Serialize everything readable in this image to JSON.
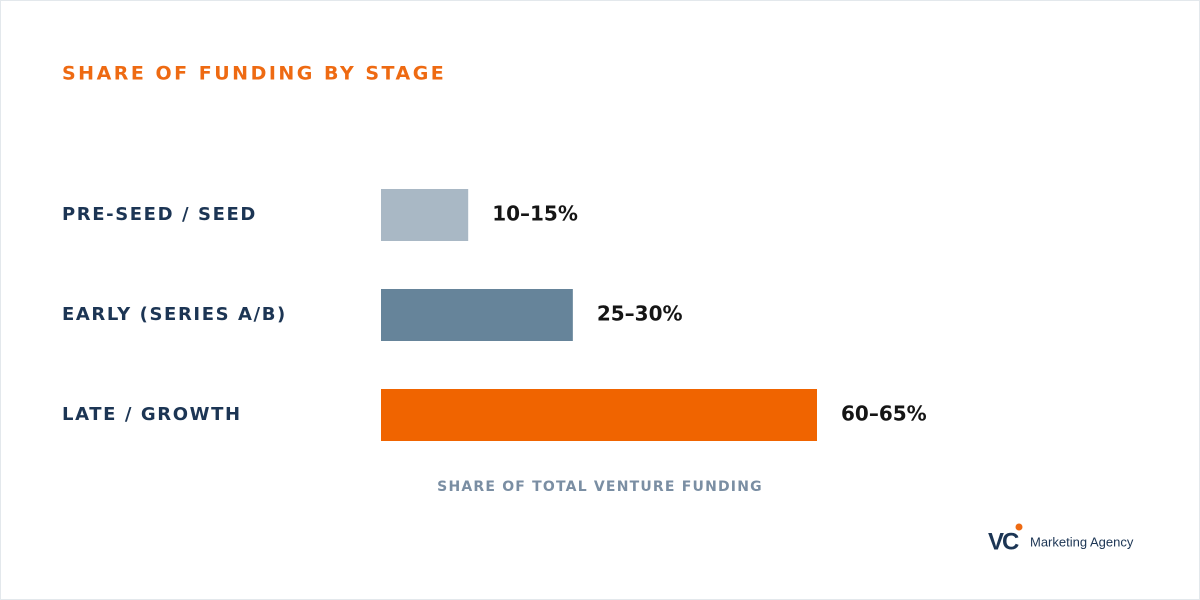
{
  "chart_data": {
    "type": "bar",
    "orientation": "horizontal",
    "title": "SHARE OF FUNDING BY STAGE",
    "categories": [
      "PRE-SEED / SEED",
      "EARLY (SERIES A/B)",
      "LATE / GROWTH"
    ],
    "values": [
      12.5,
      27.5,
      62.5
    ],
    "value_labels": [
      "10–15%",
      "25–30%",
      "60–65%"
    ],
    "colors": [
      "#a9b8c5",
      "#66849a",
      "#f06400"
    ],
    "xlabel": "SHARE OF TOTAL VENTURE FUNDING"
  },
  "logo": {
    "mark": "VC",
    "text": "Marketing Agency"
  }
}
